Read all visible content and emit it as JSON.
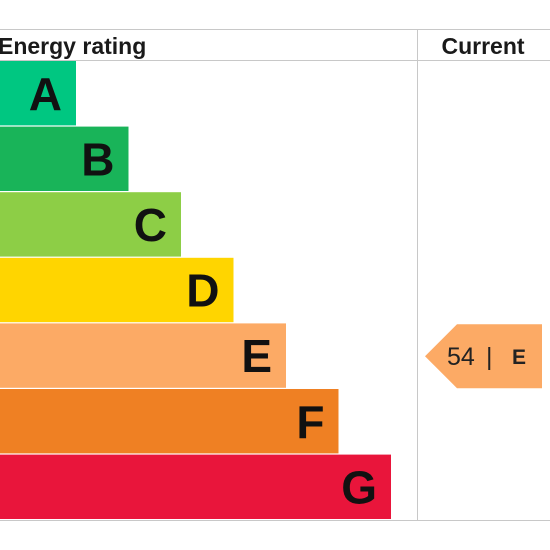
{
  "chart_data": {
    "type": "bar",
    "orientation": "horizontal",
    "header_left": "Energy rating",
    "header_right": "Current",
    "bands": [
      {
        "letter": "A",
        "color": "#00c781"
      },
      {
        "letter": "B",
        "color": "#19b459"
      },
      {
        "letter": "C",
        "color": "#8dce46"
      },
      {
        "letter": "D",
        "color": "#ffd500"
      },
      {
        "letter": "E",
        "color": "#fcaa65"
      },
      {
        "letter": "F",
        "color": "#ef8023"
      },
      {
        "letter": "G",
        "color": "#e9153b"
      }
    ],
    "current": {
      "score": "54",
      "separator": "|",
      "band": "E",
      "color": "#fcaa65"
    },
    "grid_color": "#c8c8c8"
  }
}
